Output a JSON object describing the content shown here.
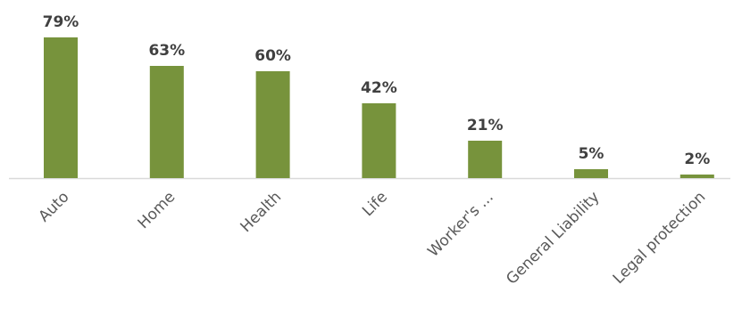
{
  "chart_data": {
    "type": "bar",
    "categories": [
      "Auto",
      "Home",
      "Health",
      "Life",
      "Worker's ...",
      "General Liability",
      "Legal protection"
    ],
    "values": [
      79,
      63,
      60,
      42,
      21,
      5,
      2
    ],
    "value_labels": [
      "79%",
      "63%",
      "60%",
      "42%",
      "21%",
      "5%",
      "2%"
    ],
    "unit": "%",
    "ylim": [
      0,
      79
    ],
    "grid": false,
    "legend": "none",
    "bar_color": "#77933c",
    "baseline_color": "#d9d9d9",
    "label_color": "#404040",
    "category_color": "#595959"
  }
}
